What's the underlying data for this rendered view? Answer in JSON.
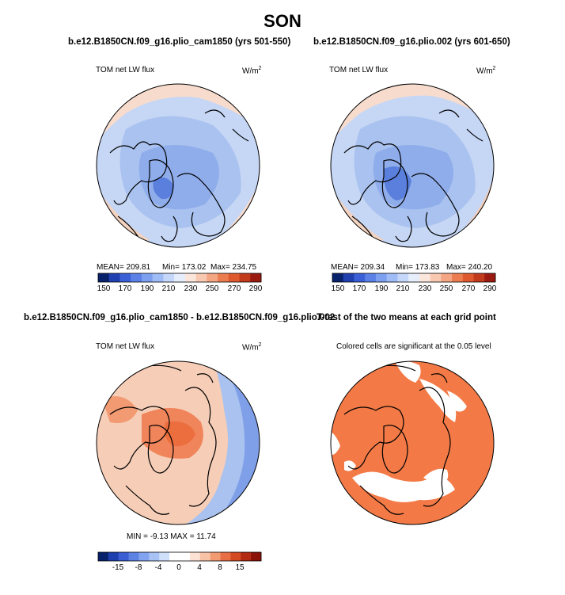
{
  "figure": {
    "title": "SON",
    "colors": {
      "land": "#cfd9f2",
      "ocean_blue": "#a9c2ee",
      "arctic_blue": "#8aa9e8",
      "deep_blue": "#5a7fdc",
      "peach": "#f5d7c8",
      "orange": "#f0703c",
      "signif_orange": "#f37a47"
    }
  },
  "panels": {
    "ctrl": {
      "title": "b.e12.B1850CN.f09_g16.plio_cam1850 (yrs 501-550)",
      "variable": "TOM net LW flux",
      "units": "W/m",
      "units_exp": "2",
      "mean_text": "MEAN= 209.81",
      "min_text": "Min= 173.02",
      "max_text": "Max= 234.75"
    },
    "exp": {
      "title": "b.e12.B1850CN.f09_g16.plio.002 (yrs 601-650)",
      "variable": "TOM net LW flux",
      "units": "W/m",
      "units_exp": "2",
      "mean_text": "MEAN= 209.34",
      "min_text": "Min= 173.83",
      "max_text": "Max= 240.20"
    },
    "diff": {
      "title": "b.e12.B1850CN.f09_g16.plio_cam1850 - b.e12.B1850CN.f09_g16.plio.002",
      "variable": "TOM net LW flux",
      "units": "W/m",
      "units_exp": "2",
      "minmax_text": "MIN =  -9.13  MAX =  11.74"
    },
    "ttest": {
      "title": "T-test of the two means at each grid point",
      "subtitle": "Colored cells are significant at the 0.05 level"
    }
  },
  "colorbars": {
    "abs": {
      "colors": [
        "#08216b",
        "#2140b0",
        "#3b5fd6",
        "#5b80e6",
        "#7d9ff0",
        "#a0bcf6",
        "#c5d7fa",
        "#e6eefc",
        "#fbe6dc",
        "#f8c9b0",
        "#f4a582",
        "#ec7d50",
        "#de5a2e",
        "#c23a1c",
        "#9b1a10"
      ],
      "labels": [
        "150",
        "170",
        "190",
        "210",
        "230",
        "250",
        "270",
        "290"
      ]
    },
    "diff": {
      "colors": [
        "#08216b",
        "#1e3fae",
        "#3a5fd4",
        "#5c82e4",
        "#82a4f0",
        "#a8c2f6",
        "#d0e0fb",
        "#ffffff",
        "#ffffff",
        "#fbe2d5",
        "#f7c2a6",
        "#f29b73",
        "#e86f45",
        "#d44a22",
        "#b22a12",
        "#8a1208"
      ],
      "labels": [
        "-15",
        "-8",
        "-4",
        "0",
        "4",
        "8",
        "15"
      ]
    }
  }
}
